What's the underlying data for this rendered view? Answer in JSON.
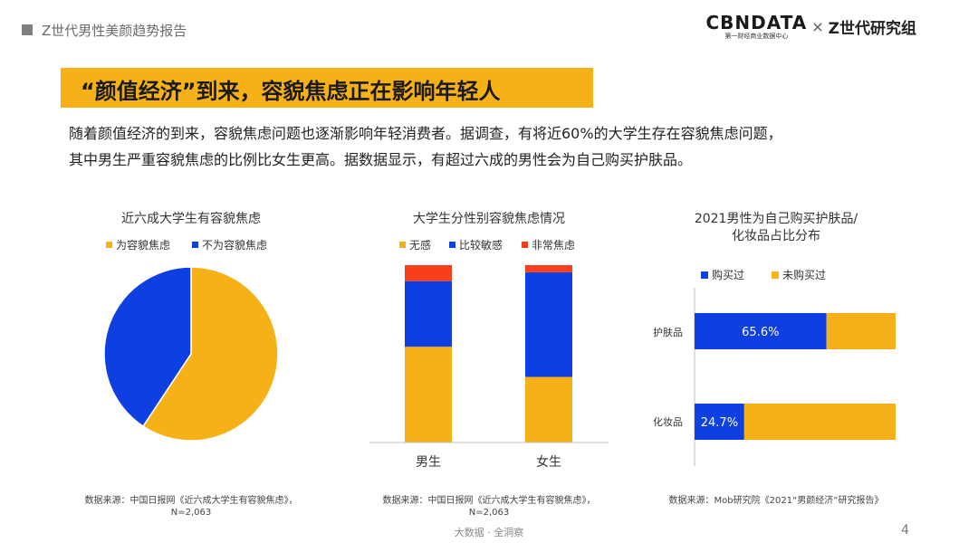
{
  "header": {
    "title": "Z世代男性美颜趋势报告"
  },
  "logo": {
    "brand": "CBNDATA",
    "brand_sub": "第一财经商业数据中心",
    "times": "×",
    "partner": "Z世代研究组"
  },
  "banner": {
    "title": "“颜值经济”到来，容貌焦虑正在影响年轻人"
  },
  "description": {
    "line1": "随着颜值经济的到来，容貌焦虑问题也逐渐影响年轻消费者。据调查，有将近60%的大学生存在容貌焦虑问题，",
    "line2": "其中男生严重容貌焦虑的比例比女生更高。据数据显示，有超过六成的男性会为自己购买护肤品。"
  },
  "colors": {
    "yellow": "#f6b119",
    "blue": "#0e3fe0",
    "red": "#f7401b",
    "axis": "#bfbfbf"
  },
  "chart_data": [
    {
      "type": "pie",
      "title": "近六成大学生有容貌焦虑",
      "legend": [
        "为容貌焦虑",
        "不为容貌焦虑"
      ],
      "values": [
        59.3,
        40.7
      ],
      "source": "数据来源：中国日报网《近六成大学生有容貌焦虑》，",
      "source2": "N=2,063"
    },
    {
      "type": "bar",
      "stacked": true,
      "title": "大学生分性别容貌焦虑情况",
      "categories": [
        "男生",
        "女生"
      ],
      "series": [
        {
          "name": "无感",
          "values": [
            54,
            37
          ]
        },
        {
          "name": "比较敏感",
          "values": [
            37,
            59
          ]
        },
        {
          "name": "非常焦虑",
          "values": [
            9,
            4
          ]
        }
      ],
      "ylim": [
        0,
        100
      ],
      "source": "数据来源：中国日报网《近六成大学生有容貌焦虑》，",
      "source2": "N=2,063"
    },
    {
      "type": "bar",
      "orientation": "horizontal",
      "stacked": true,
      "title": "2021男性为自己购买护肤品/",
      "title2": "化妆品占比分布",
      "categories": [
        "护肤品",
        "化妆品"
      ],
      "series": [
        {
          "name": "购买过",
          "values": [
            65.6,
            24.7
          ],
          "labels": [
            "65.6%",
            "24.7%"
          ]
        },
        {
          "name": "未购买过",
          "values": [
            34.4,
            75.3
          ]
        }
      ],
      "xlim": [
        0,
        100
      ],
      "source": "数据来源：Mob研究院《2021“男颜经济”研究报告》"
    }
  ],
  "footer": {
    "text": "大数据 · 全洞察",
    "page": "4"
  }
}
